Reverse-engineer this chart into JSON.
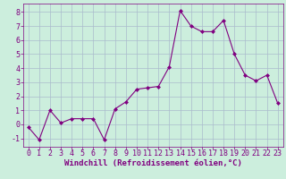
{
  "x": [
    0,
    1,
    2,
    3,
    4,
    5,
    6,
    7,
    8,
    9,
    10,
    11,
    12,
    13,
    14,
    15,
    16,
    17,
    18,
    19,
    20,
    21,
    22,
    23
  ],
  "y": [
    -0.2,
    -1.1,
    1.0,
    0.1,
    0.4,
    0.4,
    0.4,
    -1.1,
    1.1,
    1.6,
    2.5,
    2.6,
    2.7,
    4.1,
    8.1,
    7.0,
    6.6,
    6.6,
    7.4,
    5.0,
    3.5,
    3.1,
    3.5,
    1.5
  ],
  "line_color": "#800080",
  "marker": "D",
  "marker_size": 2.0,
  "bg_color": "#cceedd",
  "grid_color": "#aabbcc",
  "xlabel": "Windchill (Refroidissement éolien,°C)",
  "xlim": [
    -0.5,
    23.5
  ],
  "ylim": [
    -1.6,
    8.6
  ],
  "yticks": [
    -1,
    0,
    1,
    2,
    3,
    4,
    5,
    6,
    7,
    8
  ],
  "xticks": [
    0,
    1,
    2,
    3,
    4,
    5,
    6,
    7,
    8,
    9,
    10,
    11,
    12,
    13,
    14,
    15,
    16,
    17,
    18,
    19,
    20,
    21,
    22,
    23
  ],
  "tick_color": "#800080",
  "label_color": "#800080",
  "label_fontsize": 6.5,
  "tick_fontsize": 6.0
}
